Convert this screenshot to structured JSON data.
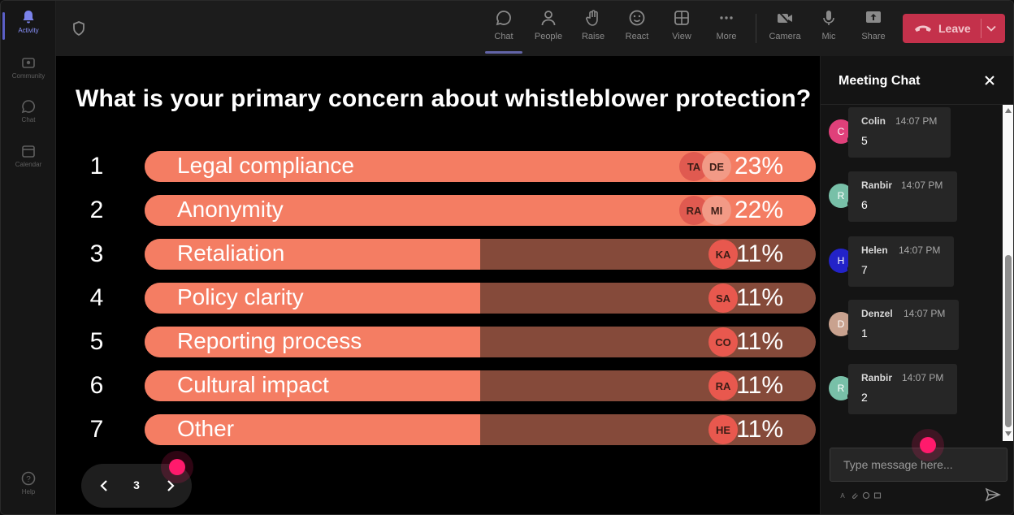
{
  "rail": {
    "items": [
      {
        "label": "Activity",
        "icon": "bell-icon",
        "active": true
      },
      {
        "label": "Community",
        "icon": "community-icon",
        "active": false
      },
      {
        "label": "Chat",
        "icon": "chat-icon",
        "active": false
      },
      {
        "label": "Calendar",
        "icon": "calendar-icon",
        "active": false
      }
    ],
    "help": "Help"
  },
  "toolbar": {
    "chat": "Chat",
    "people": "People",
    "raise": "Raise",
    "react": "React",
    "view": "View",
    "more": "More",
    "camera": "Camera",
    "mic": "Mic",
    "share": "Share",
    "leave": "Leave"
  },
  "poll": {
    "question": "What is your primary concern about whistleblower protection?",
    "options": [
      {
        "rank": "1",
        "label": "Legal compliance",
        "percent": "23%",
        "fill": 1.0,
        "avatars": [
          "TA",
          "DE"
        ]
      },
      {
        "rank": "2",
        "label": "Anonymity",
        "percent": "22%",
        "fill": 1.0,
        "avatars": [
          "RA",
          "MI"
        ]
      },
      {
        "rank": "3",
        "label": "Retaliation",
        "percent": "11%",
        "fill": 0.5,
        "avatars": [
          "KA"
        ]
      },
      {
        "rank": "4",
        "label": "Policy clarity",
        "percent": "11%",
        "fill": 0.5,
        "avatars": [
          "SA"
        ]
      },
      {
        "rank": "5",
        "label": "Reporting process",
        "percent": "11%",
        "fill": 0.5,
        "avatars": [
          "CO"
        ]
      },
      {
        "rank": "6",
        "label": "Cultural impact",
        "percent": "11%",
        "fill": 0.5,
        "avatars": [
          "RA"
        ]
      },
      {
        "rank": "7",
        "label": "Other",
        "percent": "11%",
        "fill": 0.5,
        "avatars": [
          "HE"
        ]
      }
    ],
    "page": "3"
  },
  "chat": {
    "title": "Meeting Chat",
    "messages": [
      {
        "initial": "C",
        "name": "Colin",
        "time": "14:07 PM",
        "text": "5",
        "color": "#e0407a"
      },
      {
        "initial": "R",
        "name": "Ranbir",
        "time": "14:07 PM",
        "text": "6",
        "color": "#78c0a8"
      },
      {
        "initial": "H",
        "name": "Helen",
        "time": "14:07 PM",
        "text": "7",
        "color": "#2323c8"
      },
      {
        "initial": "D",
        "name": "Denzel",
        "time": "14:07 PM",
        "text": "1",
        "color": "#c9a28f"
      },
      {
        "initial": "R",
        "name": "Ranbir",
        "time": "14:07 PM",
        "text": "2",
        "color": "#78c0a8"
      }
    ],
    "input_placeholder": "Type message here..."
  },
  "colors": {
    "bar_fill": "#f47d63",
    "bar_track": "#854a3a",
    "leave": "#c4314b",
    "accent": "#6264a7",
    "cursor_dot": "#ff1a6c"
  }
}
